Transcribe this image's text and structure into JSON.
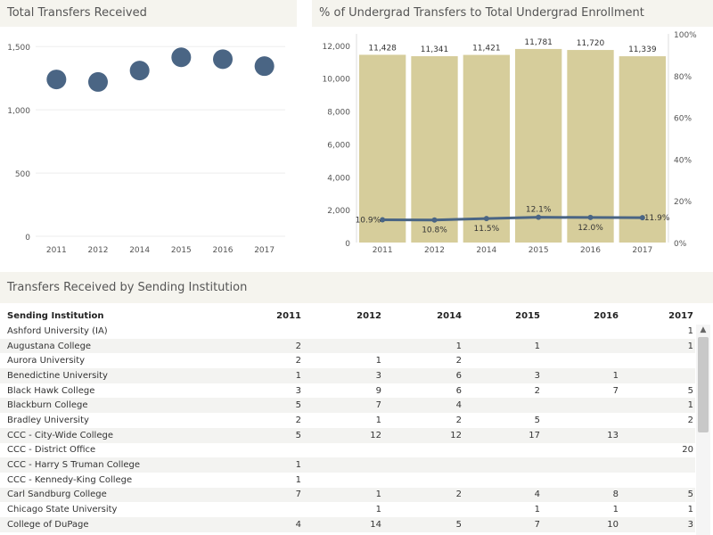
{
  "panels": {
    "transfers_title": "Total Transfers Received",
    "percent_title": "% of Undergrad Transfers to Total Undergrad Enrollment",
    "table_title": "Transfers Received by Sending Institution"
  },
  "chart_data": [
    {
      "type": "scatter",
      "title": "Total Transfers Received",
      "categories": [
        "2011",
        "2012",
        "2014",
        "2015",
        "2016",
        "2017"
      ],
      "values": [
        1240,
        1220,
        1310,
        1415,
        1400,
        1345
      ],
      "ylim": [
        0,
        1600
      ],
      "yticks": [
        "0",
        "500",
        "1,000",
        "1,500"
      ],
      "ytick_values": [
        0,
        500,
        1000,
        1500
      ],
      "marker_color": "#4a6584",
      "grid": true
    },
    {
      "type": "bar",
      "title": "% of Undergrad Transfers to Total Undergrad Enrollment",
      "categories": [
        "2011",
        "2012",
        "2014",
        "2015",
        "2016",
        "2017"
      ],
      "series": [
        {
          "values": [
            11428,
            11341,
            11421,
            11781,
            11720,
            11339
          ],
          "labels": [
            "11,428",
            "11,341",
            "11,421",
            "11,781",
            "11,720",
            "11,339"
          ],
          "color": "#d6cd9b"
        },
        {
          "type": "line",
          "values": [
            10.9,
            10.8,
            11.5,
            12.1,
            12.0,
            11.9
          ],
          "labels": [
            "10.9%",
            "10.8%",
            "11.5%",
            "12.1%",
            "12.0%",
            "11.9%"
          ],
          "color": "#4a6584",
          "axis": "right"
        }
      ],
      "ylim": [
        0,
        12700
      ],
      "yticks": [
        "0",
        "2,000",
        "4,000",
        "6,000",
        "8,000",
        "10,000",
        "12,000"
      ],
      "ytick_values": [
        0,
        2000,
        4000,
        6000,
        8000,
        10000,
        12000
      ],
      "y2lim": [
        0,
        100
      ],
      "y2ticks": [
        "0%",
        "20%",
        "40%",
        "60%",
        "80%",
        "100%"
      ],
      "y2tick_values": [
        0,
        20,
        40,
        60,
        80,
        100
      ]
    },
    {
      "type": "table",
      "title": "Transfers Received by Sending Institution",
      "columns": [
        "Sending Institution",
        "2011",
        "2012",
        "2014",
        "2015",
        "2016",
        "2017"
      ],
      "rows": [
        [
          "Ashford University (IA)",
          "",
          "",
          "",
          "",
          "",
          "1"
        ],
        [
          "Augustana College",
          "2",
          "",
          "1",
          "1",
          "",
          "1"
        ],
        [
          "Aurora University",
          "2",
          "1",
          "2",
          "",
          "",
          ""
        ],
        [
          "Benedictine University",
          "1",
          "3",
          "6",
          "3",
          "1",
          ""
        ],
        [
          "Black Hawk College",
          "3",
          "9",
          "6",
          "2",
          "7",
          "5"
        ],
        [
          "Blackburn College",
          "5",
          "7",
          "4",
          "",
          "",
          "1"
        ],
        [
          "Bradley University",
          "2",
          "1",
          "2",
          "5",
          "",
          "2"
        ],
        [
          "CCC - City-Wide College",
          "5",
          "12",
          "12",
          "17",
          "13",
          ""
        ],
        [
          "CCC - District Office",
          "",
          "",
          "",
          "",
          "",
          "20"
        ],
        [
          "CCC - Harry S Truman College",
          "1",
          "",
          "",
          "",
          "",
          ""
        ],
        [
          "CCC - Kennedy-King College",
          "1",
          "",
          "",
          "",
          "",
          ""
        ],
        [
          "Carl Sandburg College",
          "7",
          "1",
          "2",
          "4",
          "8",
          "5"
        ],
        [
          "Chicago State University",
          "",
          "1",
          "",
          "1",
          "1",
          "1"
        ],
        [
          "College of DuPage",
          "4",
          "14",
          "5",
          "7",
          "10",
          "3"
        ]
      ]
    }
  ]
}
